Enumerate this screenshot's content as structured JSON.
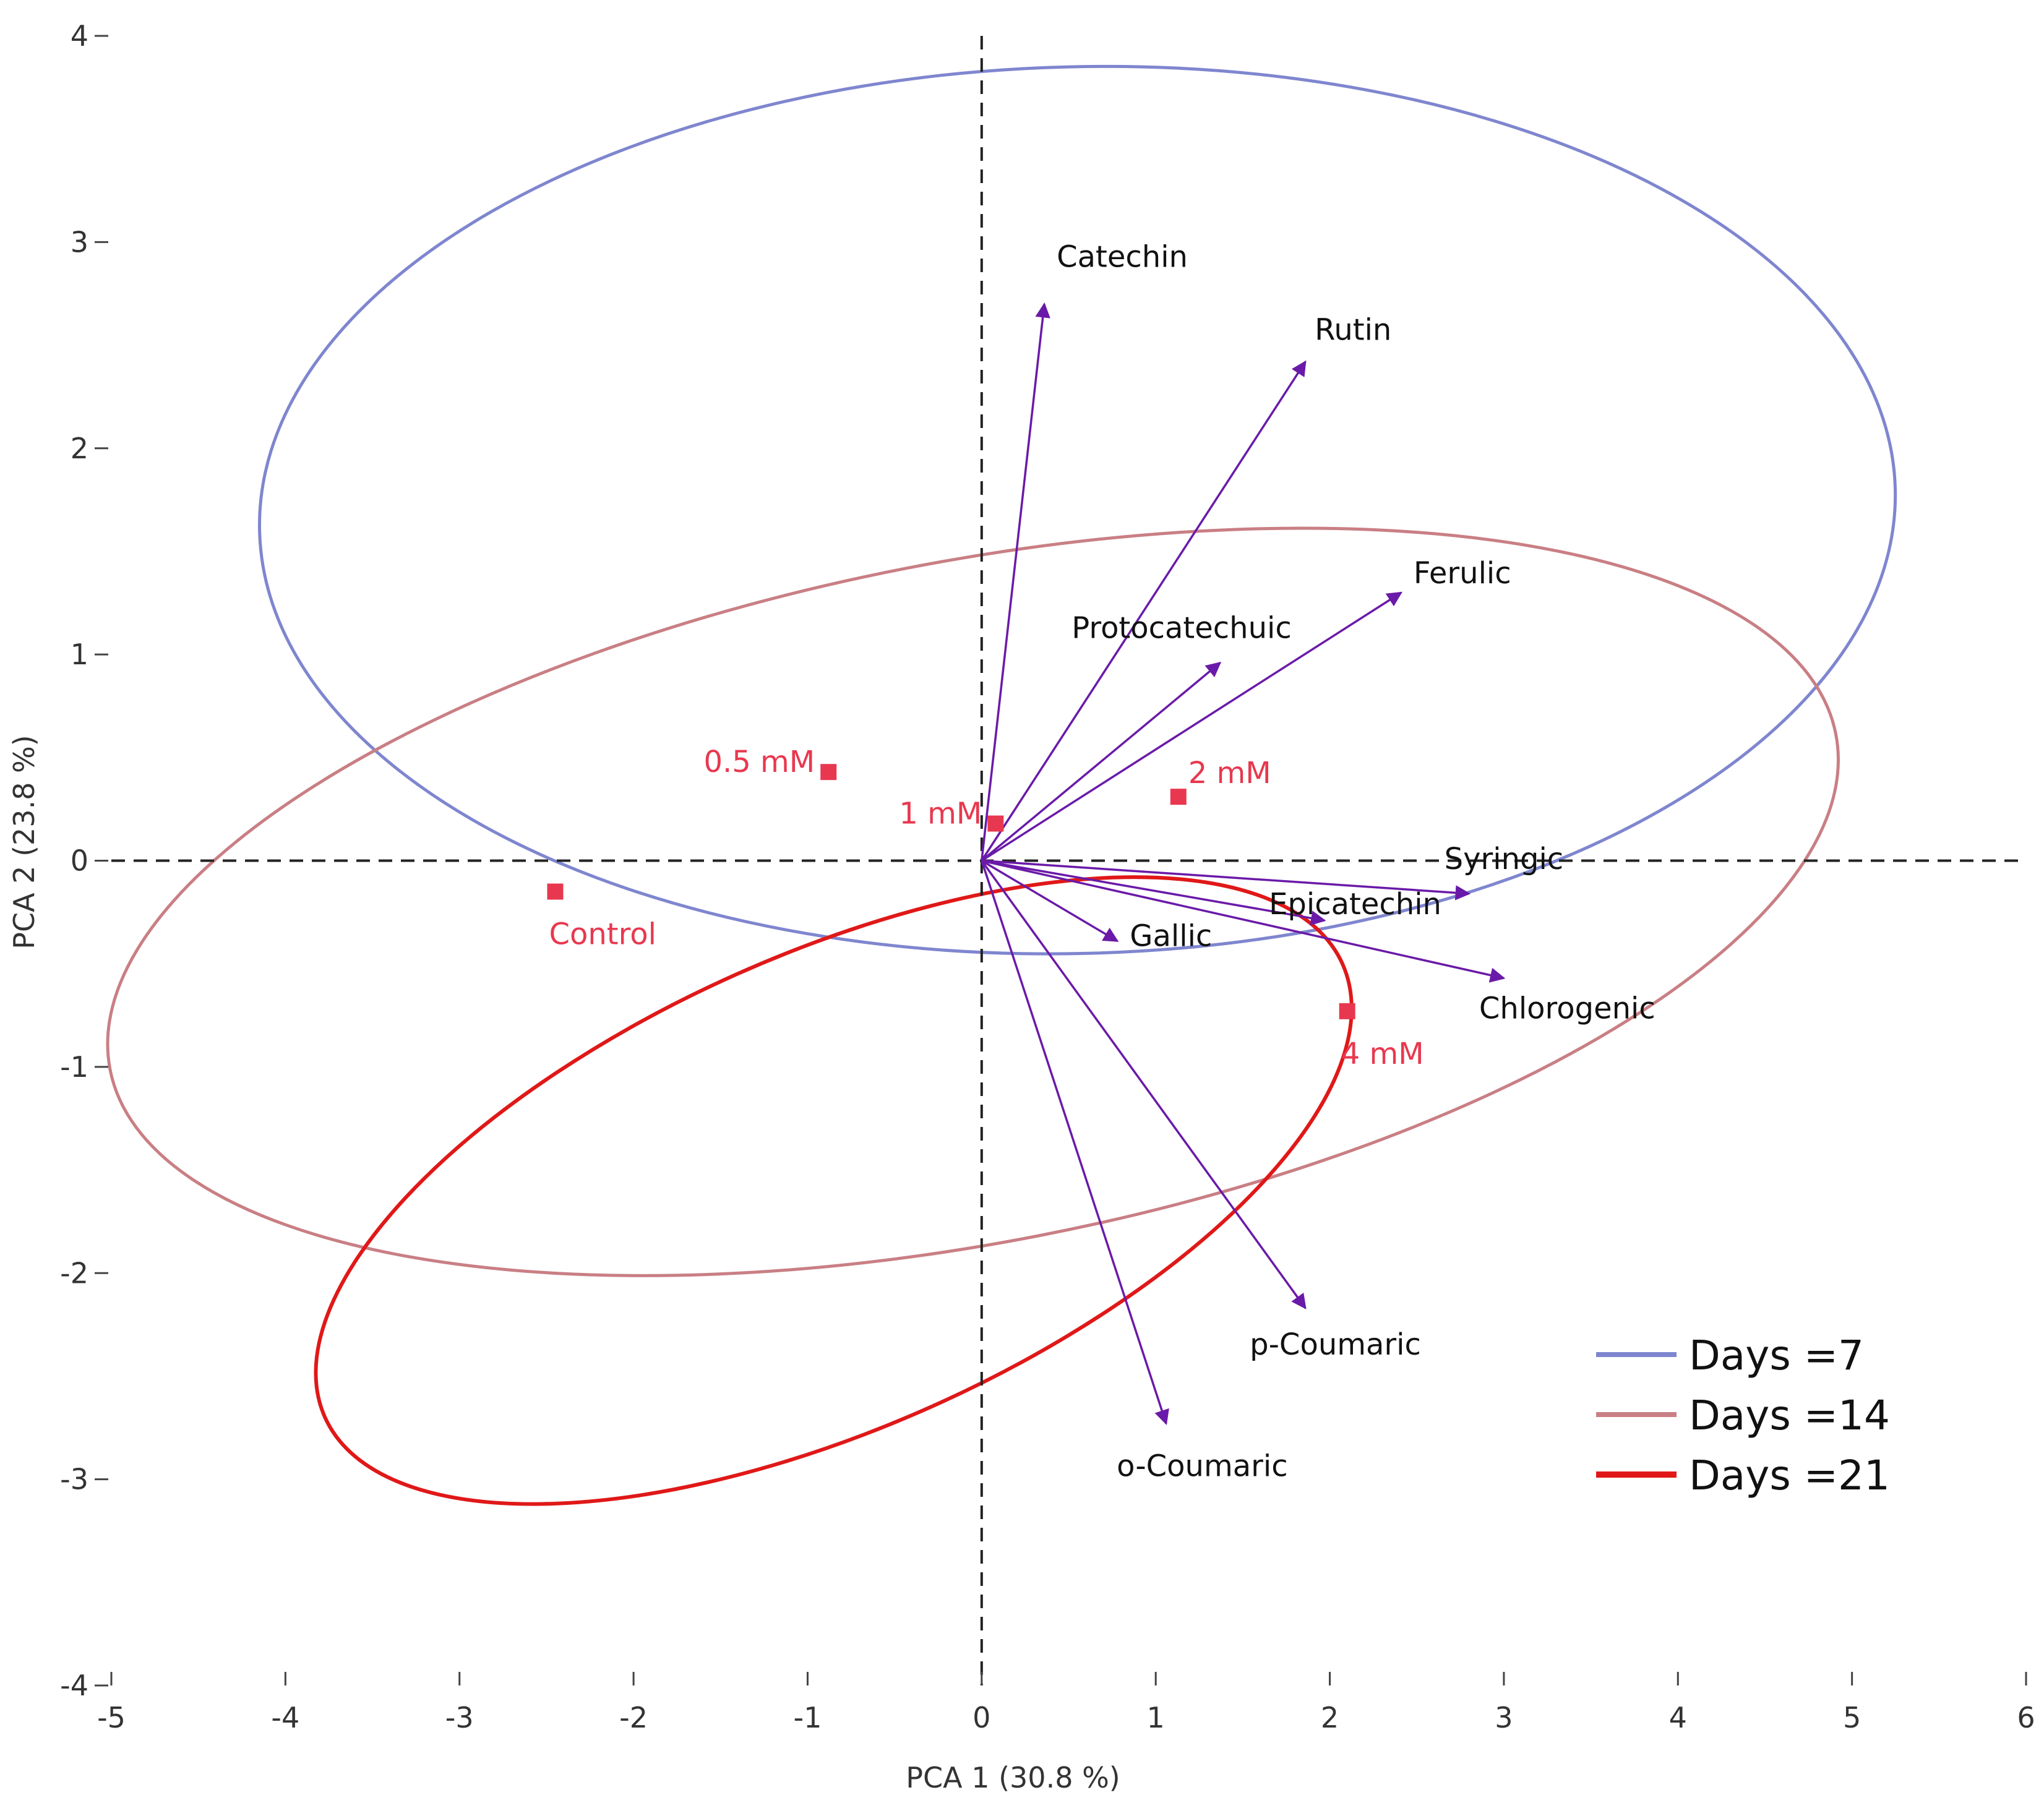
{
  "chart_data": {
    "type": "scatter",
    "subtype": "pca-biplot",
    "xlabel": "PCA 1  (30.8 %)",
    "ylabel": "PCA 2  (23.8 %)",
    "xlim": [
      -5,
      6
    ],
    "ylim": [
      -4,
      4
    ],
    "x_ticks": [
      "-5",
      "-4",
      "-3",
      "-2",
      "-1",
      "0",
      "1",
      "2",
      "3",
      "4",
      "5",
      "6"
    ],
    "y_ticks": [
      "4",
      "3",
      "2",
      "1",
      "0",
      "-1",
      "-2",
      "-3",
      "-4"
    ],
    "grid": false,
    "zero_lines": "dashed",
    "legend_position": "bottom-right",
    "series": [
      {
        "name": "Days =7",
        "color": "#7f86cf",
        "ellipse": {
          "center": [
            0.55,
            1.7
          ],
          "rx": 4.7,
          "ry": 2.15,
          "tilt_deg": -1.5
        }
      },
      {
        "name": "Days =14",
        "color": "#c97f84",
        "ellipse": {
          "center": [
            -0.05,
            -0.2
          ],
          "rx": 5.05,
          "ry": 1.65,
          "tilt_deg": -11
        }
      },
      {
        "name": "Days =21",
        "color": "#e01818",
        "ellipse": {
          "center": [
            -0.85,
            -1.6
          ],
          "rx": 3.2,
          "ry": 1.15,
          "tilt_deg": -24
        }
      }
    ],
    "points": [
      {
        "label": "Control",
        "x": -2.45,
        "y": -0.15,
        "label_pos": "below"
      },
      {
        "label": "0.5 mM",
        "x": -0.88,
        "y": 0.43,
        "label_pos": "left"
      },
      {
        "label": "1 mM",
        "x": 0.08,
        "y": 0.18,
        "label_pos": "left"
      },
      {
        "label": "2 mM",
        "x": 1.13,
        "y": 0.31,
        "label_pos": "right"
      },
      {
        "label": "4 mM",
        "x": 2.1,
        "y": -0.73,
        "label_pos": "below"
      }
    ],
    "point_color": "#e8384f",
    "loadings": [
      {
        "label": "Catechin",
        "x": 0.36,
        "y": 2.7
      },
      {
        "label": "Rutin",
        "x": 1.86,
        "y": 2.42
      },
      {
        "label": "Ferulic",
        "x": 2.41,
        "y": 1.3
      },
      {
        "label": "Protocatechuic",
        "x": 1.37,
        "y": 0.96
      },
      {
        "label": "Syringic",
        "x": 2.8,
        "y": -0.16
      },
      {
        "label": "Epicatechin",
        "x": 1.97,
        "y": -0.29
      },
      {
        "label": "Chlorogenic",
        "x": 3.0,
        "y": -0.57
      },
      {
        "label": "Gallic",
        "x": 0.78,
        "y": -0.39
      },
      {
        "label": "p-Coumaric",
        "x": 1.86,
        "y": -2.17
      },
      {
        "label": "o-Coumaric",
        "x": 1.06,
        "y": -2.73
      }
    ],
    "loading_color": "#6a1aa8"
  }
}
